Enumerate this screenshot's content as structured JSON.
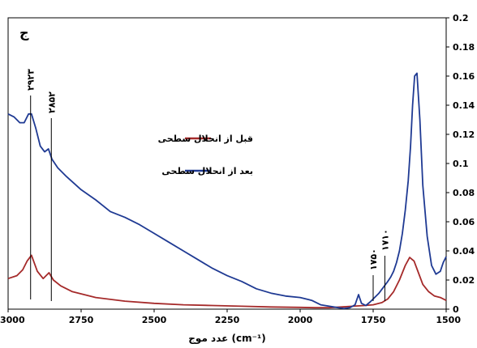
{
  "chart_data": {
    "type": "line",
    "panel_label": "ج",
    "xlabel": "عدد موج (cm⁻¹)",
    "ylabel": "",
    "xlim": [
      3000,
      1500
    ],
    "ylim": [
      0,
      0.2
    ],
    "x_reversed": true,
    "y_axis_side": "right",
    "grid": false,
    "legend_position": "center-left",
    "x_ticks": [
      3000,
      2750,
      2500,
      2250,
      2000,
      1750,
      1500
    ],
    "x_tick_labels": [
      "3000",
      "2750",
      "2500",
      "2250",
      "2000",
      "1750",
      "1500"
    ],
    "y_ticks": [
      0,
      0.02,
      0.04,
      0.06,
      0.08,
      0.1,
      0.12,
      0.14,
      0.16,
      0.18,
      0.2
    ],
    "y_tick_labels": [
      "0",
      "0.02",
      "0.04",
      "0.06",
      "0.08",
      "0.1",
      "0.12",
      "0.14",
      "0.16",
      "0.18",
      "0.2"
    ],
    "series": [
      {
        "name": "قبل از انحلال سطحی",
        "color": "#a52a2a",
        "x": [
          3000,
          2970,
          2950,
          2935,
          2920,
          2900,
          2880,
          2860,
          2845,
          2820,
          2780,
          2700,
          2600,
          2500,
          2400,
          2300,
          2200,
          2100,
          2000,
          1950,
          1900,
          1860,
          1820,
          1780,
          1750,
          1720,
          1700,
          1680,
          1660,
          1640,
          1625,
          1610,
          1595,
          1580,
          1560,
          1540,
          1520,
          1500
        ],
        "y": [
          0.021,
          0.023,
          0.027,
          0.033,
          0.037,
          0.026,
          0.021,
          0.025,
          0.02,
          0.016,
          0.012,
          0.008,
          0.0055,
          0.004,
          0.003,
          0.0025,
          0.002,
          0.0015,
          0.0012,
          0.001,
          0.001,
          0.0015,
          0.002,
          0.0025,
          0.003,
          0.0045,
          0.007,
          0.012,
          0.02,
          0.03,
          0.0355,
          0.033,
          0.025,
          0.017,
          0.012,
          0.009,
          0.008,
          0.006
        ]
      },
      {
        "name": "بعد از انحلال سطحی",
        "color": "#1f3a93",
        "x": [
          3000,
          2980,
          2960,
          2945,
          2930,
          2920,
          2905,
          2890,
          2875,
          2862,
          2850,
          2830,
          2800,
          2750,
          2700,
          2650,
          2600,
          2550,
          2500,
          2450,
          2400,
          2350,
          2300,
          2250,
          2200,
          2150,
          2100,
          2050,
          2000,
          1960,
          1930,
          1900,
          1870,
          1850,
          1830,
          1812,
          1800,
          1790,
          1775,
          1760,
          1745,
          1730,
          1715,
          1700,
          1690,
          1680,
          1670,
          1660,
          1650,
          1640,
          1630,
          1622,
          1615,
          1608,
          1600,
          1590,
          1580,
          1565,
          1550,
          1535,
          1520,
          1510,
          1500
        ],
        "y": [
          0.134,
          0.132,
          0.128,
          0.128,
          0.134,
          0.134,
          0.124,
          0.112,
          0.108,
          0.11,
          0.103,
          0.097,
          0.091,
          0.082,
          0.075,
          0.067,
          0.063,
          0.058,
          0.052,
          0.046,
          0.04,
          0.034,
          0.028,
          0.023,
          0.019,
          0.014,
          0.011,
          0.009,
          0.008,
          0.006,
          0.003,
          0.002,
          0.001,
          0.0005,
          0.001,
          0.003,
          0.01,
          0.004,
          0.0025,
          0.005,
          0.008,
          0.011,
          0.015,
          0.019,
          0.022,
          0.026,
          0.032,
          0.04,
          0.052,
          0.068,
          0.088,
          0.112,
          0.14,
          0.16,
          0.162,
          0.13,
          0.085,
          0.05,
          0.03,
          0.024,
          0.026,
          0.032,
          0.036
        ]
      }
    ],
    "annotations": [
      {
        "text": "۲۹۲۳",
        "x": 2923
      },
      {
        "text": "۲۸۵۲",
        "x": 2852
      },
      {
        "text": "۱۷۵۰",
        "x": 1750
      },
      {
        "text": "۱۷۱۰",
        "x": 1710
      }
    ]
  }
}
